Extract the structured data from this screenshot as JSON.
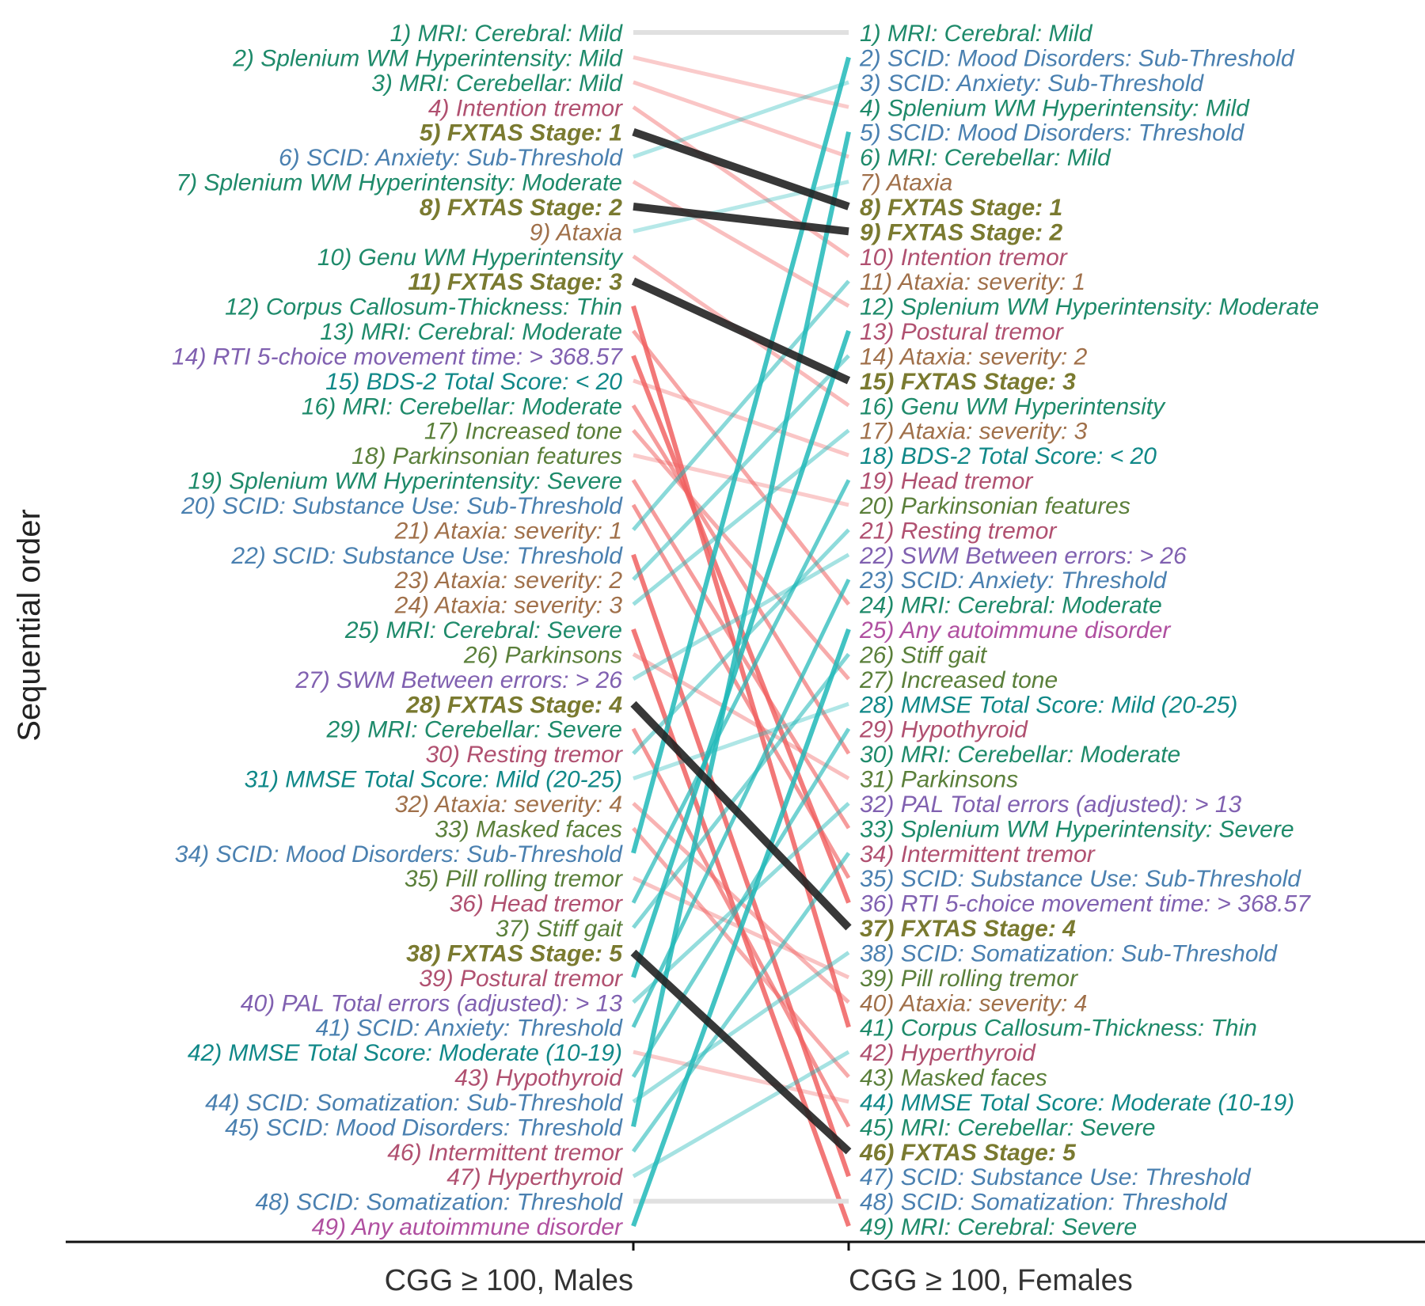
{
  "chart_data": {
    "type": "slope",
    "ylabel": "Sequential order",
    "categories": [
      "CGG ≥ 100, Males",
      "CGG ≥ 100, Females"
    ],
    "group_colors": {
      "mri": "#1e8a6a",
      "motor": "#5a7f3a",
      "tremor": "#b05070",
      "ataxia": "#a0704a",
      "scid": "#4a80b0",
      "cognitive": "#8060b0",
      "score": "#108888",
      "autoimmune": "#b050a0",
      "stage": "#7a7a30"
    },
    "line_colors": {
      "decrease": "#f06060",
      "increase": "#20b8b8",
      "stage": "#222222",
      "same": "#e0e0e0"
    },
    "events": [
      {
        "name": "MRI: Cerebral: Mild",
        "group": "mri",
        "males": 1,
        "females": 1
      },
      {
        "name": "Splenium WM Hyperintensity: Mild",
        "group": "mri",
        "males": 2,
        "females": 4
      },
      {
        "name": "MRI: Cerebellar: Mild",
        "group": "mri",
        "males": 3,
        "females": 6
      },
      {
        "name": "Intention tremor",
        "group": "tremor",
        "males": 4,
        "females": 10
      },
      {
        "name": "FXTAS Stage: 1",
        "group": "stage",
        "males": 5,
        "females": 8
      },
      {
        "name": "SCID: Anxiety: Sub-Threshold",
        "group": "scid",
        "males": 6,
        "females": 3
      },
      {
        "name": "Splenium WM Hyperintensity: Moderate",
        "group": "mri",
        "males": 7,
        "females": 12
      },
      {
        "name": "FXTAS Stage: 2",
        "group": "stage",
        "males": 8,
        "females": 9
      },
      {
        "name": "Ataxia",
        "group": "ataxia",
        "males": 9,
        "females": 7
      },
      {
        "name": "Genu WM Hyperintensity",
        "group": "mri",
        "males": 10,
        "females": 16
      },
      {
        "name": "FXTAS Stage: 3",
        "group": "stage",
        "males": 11,
        "females": 15
      },
      {
        "name": "Corpus Callosum-Thickness: Thin",
        "group": "mri",
        "males": 12,
        "females": 41
      },
      {
        "name": "MRI: Cerebral: Moderate",
        "group": "mri",
        "males": 13,
        "females": 24
      },
      {
        "name": "RTI 5-choice movement time: > 368.57",
        "group": "cognitive",
        "males": 14,
        "females": 36
      },
      {
        "name": "BDS-2 Total Score: < 20",
        "group": "score",
        "males": 15,
        "females": 18
      },
      {
        "name": "MRI: Cerebellar: Moderate",
        "group": "mri",
        "males": 16,
        "females": 30
      },
      {
        "name": "Increased tone",
        "group": "motor",
        "males": 17,
        "females": 27
      },
      {
        "name": "Parkinsonian features",
        "group": "motor",
        "males": 18,
        "females": 20
      },
      {
        "name": "Splenium WM Hyperintensity: Severe",
        "group": "mri",
        "males": 19,
        "females": 33
      },
      {
        "name": "SCID: Substance Use: Sub-Threshold",
        "group": "scid",
        "males": 20,
        "females": 35
      },
      {
        "name": "Ataxia: severity: 1",
        "group": "ataxia",
        "males": 21,
        "females": 11
      },
      {
        "name": "SCID: Substance Use: Threshold",
        "group": "scid",
        "males": 22,
        "females": 47
      },
      {
        "name": "Ataxia: severity: 2",
        "group": "ataxia",
        "males": 23,
        "females": 14
      },
      {
        "name": "Ataxia: severity: 3",
        "group": "ataxia",
        "males": 24,
        "females": 17
      },
      {
        "name": "MRI: Cerebral: Severe",
        "group": "mri",
        "males": 25,
        "females": 49
      },
      {
        "name": "Parkinsons",
        "group": "motor",
        "males": 26,
        "females": 31
      },
      {
        "name": "SWM Between errors: > 26",
        "group": "cognitive",
        "males": 27,
        "females": 22
      },
      {
        "name": "FXTAS Stage: 4",
        "group": "stage",
        "males": 28,
        "females": 37
      },
      {
        "name": "MRI: Cerebellar: Severe",
        "group": "mri",
        "males": 29,
        "females": 45
      },
      {
        "name": "Resting tremor",
        "group": "tremor",
        "males": 30,
        "females": 21
      },
      {
        "name": "MMSE Total Score: Mild (20-25)",
        "group": "score",
        "males": 31,
        "females": 28
      },
      {
        "name": "Ataxia: severity: 4",
        "group": "ataxia",
        "males": 32,
        "females": 40
      },
      {
        "name": "Masked faces",
        "group": "motor",
        "males": 33,
        "females": 43
      },
      {
        "name": "SCID: Mood Disorders: Sub-Threshold",
        "group": "scid",
        "males": 34,
        "females": 2
      },
      {
        "name": "Pill rolling tremor",
        "group": "motor",
        "males": 35,
        "females": 39
      },
      {
        "name": "Head tremor",
        "group": "tremor",
        "males": 36,
        "females": 19
      },
      {
        "name": "Stiff gait",
        "group": "motor",
        "males": 37,
        "females": 26
      },
      {
        "name": "FXTAS Stage: 5",
        "group": "stage",
        "males": 38,
        "females": 46
      },
      {
        "name": "Postural tremor",
        "group": "tremor",
        "males": 39,
        "females": 13
      },
      {
        "name": "PAL Total errors (adjusted): > 13",
        "group": "cognitive",
        "males": 40,
        "females": 32
      },
      {
        "name": "SCID: Anxiety: Threshold",
        "group": "scid",
        "males": 41,
        "females": 23
      },
      {
        "name": "MMSE Total Score: Moderate (10-19)",
        "group": "score",
        "males": 42,
        "females": 44
      },
      {
        "name": "Hypothyroid",
        "group": "tremor",
        "males": 43,
        "females": 29
      },
      {
        "name": "SCID: Somatization: Sub-Threshold",
        "group": "scid",
        "males": 44,
        "females": 38
      },
      {
        "name": "SCID: Mood Disorders: Threshold",
        "group": "scid",
        "males": 45,
        "females": 5
      },
      {
        "name": "Intermittent tremor",
        "group": "tremor",
        "males": 46,
        "females": 34
      },
      {
        "name": "Hyperthyroid",
        "group": "tremor",
        "males": 47,
        "females": 42
      },
      {
        "name": "SCID: Somatization: Threshold",
        "group": "scid",
        "males": 48,
        "females": 48
      },
      {
        "name": "Any autoimmune disorder",
        "group": "autoimmune",
        "males": 49,
        "females": 25
      }
    ]
  }
}
